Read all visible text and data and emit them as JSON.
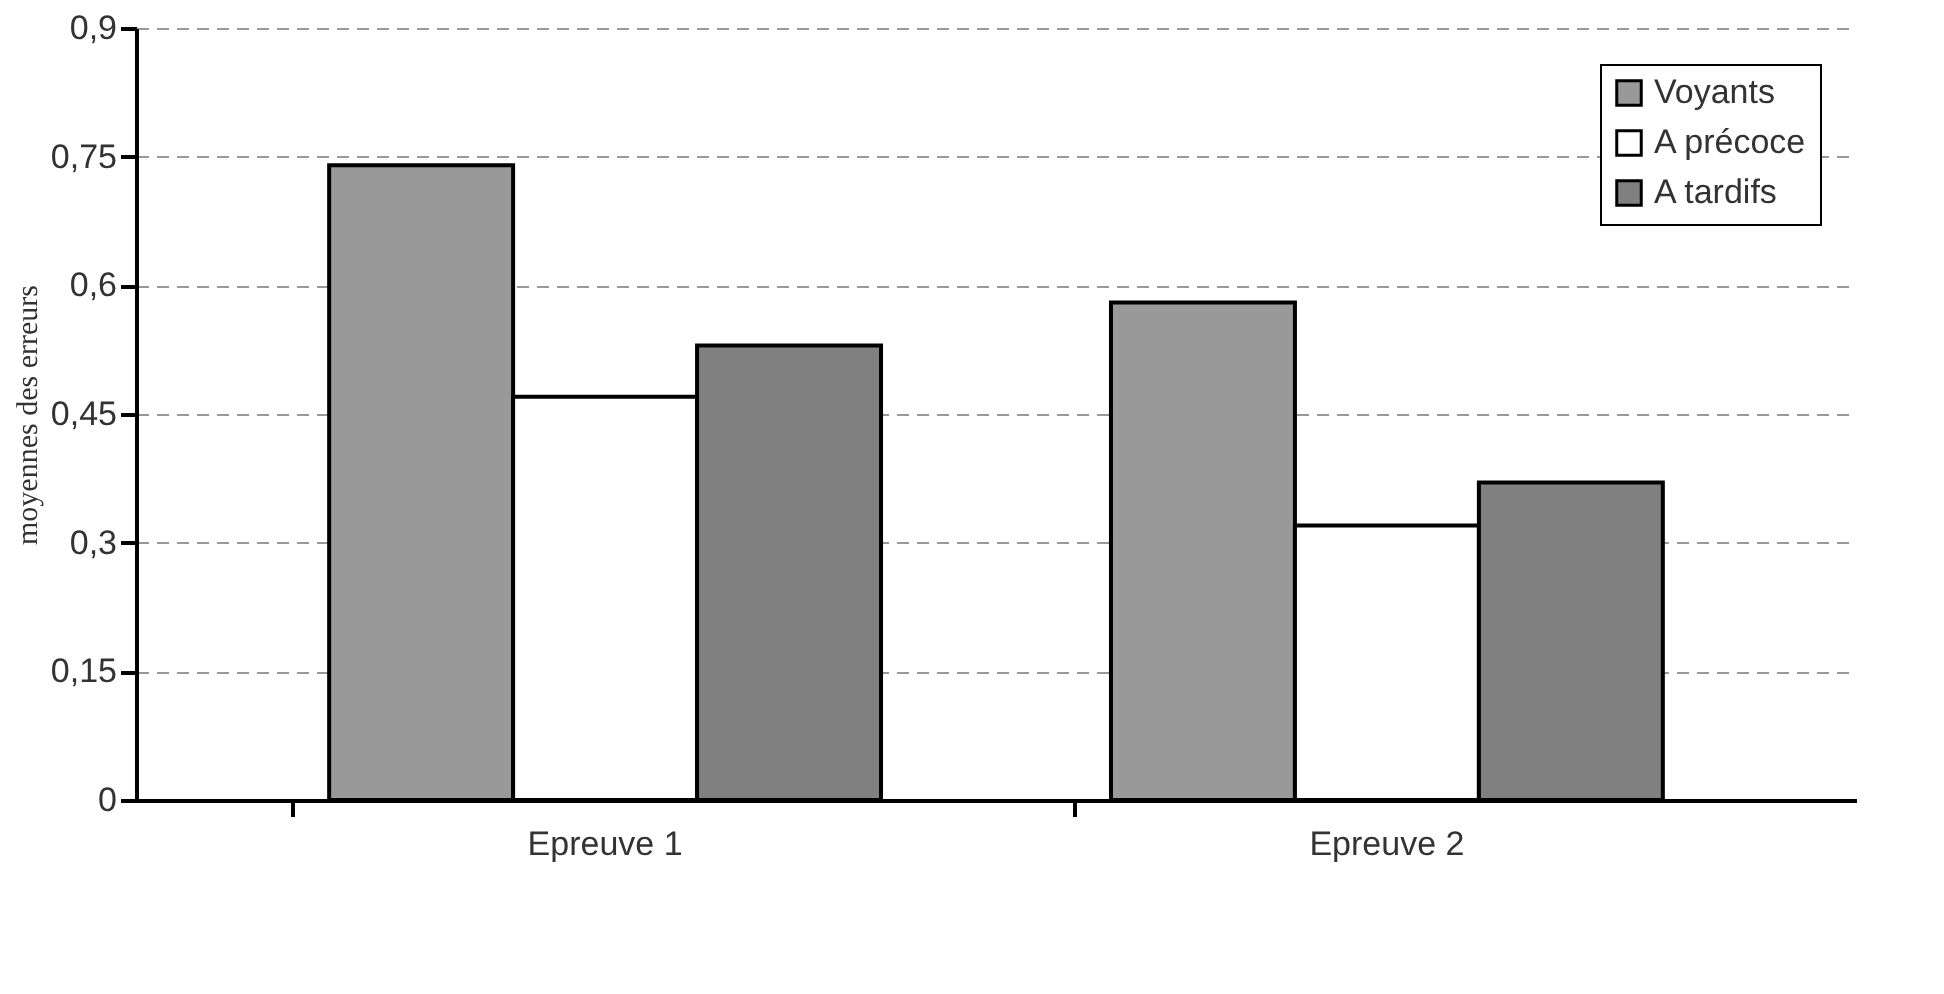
{
  "chart_data": {
    "type": "bar",
    "ylabel": "moyennes des erreurs",
    "categories": [
      "Epreuve 1",
      "Epreuve 2"
    ],
    "series": [
      {
        "name": "Voyants",
        "color": "#999999",
        "values": [
          0.74,
          0.58
        ]
      },
      {
        "name": "A précoce",
        "color": "#ffffff",
        "values": [
          0.47,
          0.32
        ]
      },
      {
        "name": "A tardifs",
        "color": "#808080",
        "values": [
          0.53,
          0.37
        ]
      }
    ],
    "ylim": [
      0,
      0.9
    ],
    "yticks": [
      0,
      {
        "value": 0.15,
        "label": "0,15"
      },
      {
        "value": 0.3,
        "label": "0,3"
      },
      {
        "value": 0.45,
        "label": "0,45"
      },
      {
        "value": 0.6,
        "label": "0,6"
      },
      {
        "value": 0.75,
        "label": "0,75"
      },
      {
        "value": 0.9,
        "label": "0,9"
      }
    ],
    "grid": "y",
    "line_style": "dashed",
    "legend": "top right"
  }
}
